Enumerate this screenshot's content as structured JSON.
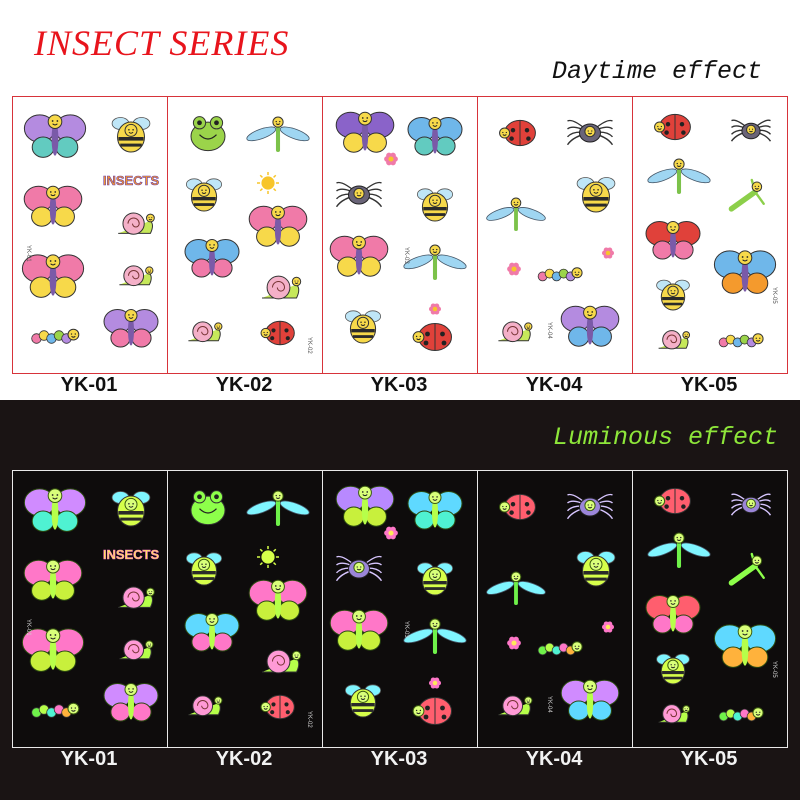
{
  "header": {
    "series_title": "INSECT SERIES",
    "day_title": "Daytime effect",
    "lum_title": "Luminous effect"
  },
  "sheet_labels": [
    "YK-01",
    "YK-02",
    "YK-03",
    "YK-04",
    "YK-05"
  ],
  "sheet_code_stamps": [
    "YK-01",
    "YK-02",
    "YK-03",
    "YK-04",
    "YK-05"
  ],
  "sticker_text": {
    "insects_word": "INSECTS"
  },
  "colors": {
    "series_title": "#e8141c",
    "panel_border_day": "#d7333a",
    "panel_border_night": "#e9e9e9",
    "night_background": "#1a1414",
    "luminous_title": "#8ee63a"
  }
}
